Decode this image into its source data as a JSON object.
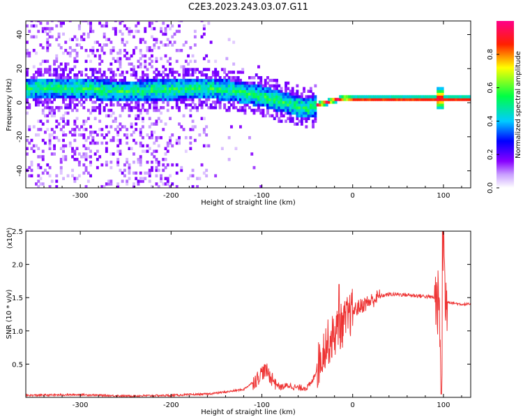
{
  "title": "C2E3.2023.243.03.07.G11",
  "chart_data": [
    {
      "type": "heatmap",
      "xlabel": "Height of straight line (km)",
      "ylabel": "Frequency (Hz)",
      "xlim": [
        -360,
        130
      ],
      "ylim": [
        -50,
        48
      ],
      "xticks": [
        -300,
        -200,
        -100,
        0,
        100
      ],
      "yticks": [
        -40,
        -20,
        0,
        20,
        40
      ],
      "colorbar": {
        "label": "Normalized spectral amplitude",
        "range": [
          0.0,
          1.0
        ],
        "ticks": [
          0.0,
          0.2,
          0.4,
          0.6,
          0.8
        ],
        "colormap": [
          "#ffffff",
          "#8800ff",
          "#0000ff",
          "#00ccff",
          "#00ff00",
          "#ffff00",
          "#ff0000",
          "#ff0080"
        ]
      },
      "ridge": {
        "description_x": [
          -360,
          -300,
          -280,
          -260,
          -200,
          -160,
          -130,
          -100,
          -80,
          -60,
          -50,
          -40,
          -20,
          -10,
          0,
          90,
          95,
          100,
          130
        ],
        "frequency_hz": [
          8,
          8,
          7,
          6,
          7,
          8,
          6,
          3,
          0,
          -3,
          -4,
          -2,
          1,
          2,
          1.5,
          1.5,
          2,
          1.5,
          1.5
        ]
      }
    },
    {
      "type": "line",
      "xlabel": "Height of straight line (km)",
      "ylabel": "SNR (10 * v/v)",
      "y_multiplier": "(x10⁴)",
      "xlim": [
        -360,
        130
      ],
      "ylim": [
        0,
        2.5
      ],
      "xticks": [
        -300,
        -200,
        -100,
        0,
        100
      ],
      "yticks": [
        0.5,
        1.0,
        1.5,
        2.0,
        2.5
      ],
      "ytick_labels": [
        "0.5",
        "1.0",
        "1.5",
        "2.0",
        "2.5"
      ],
      "color": "#ee3333",
      "series": [
        {
          "x": [
            -360,
            -300,
            -250,
            -200,
            -160,
            -140,
            -120,
            -105,
            -100,
            -95,
            -90,
            -80,
            -70,
            -60,
            -50,
            -45,
            -35,
            -30,
            -25,
            -20,
            -15,
            -10,
            -5,
            0,
            10,
            20,
            30,
            40,
            50,
            60,
            70,
            80,
            90,
            95,
            98,
            100,
            102,
            110,
            120,
            130
          ],
          "y": [
            0.03,
            0.04,
            0.02,
            0.03,
            0.05,
            0.08,
            0.12,
            0.28,
            0.38,
            0.4,
            0.3,
            0.15,
            0.18,
            0.14,
            0.15,
            0.22,
            0.6,
            0.8,
            0.85,
            0.95,
            1.05,
            1.1,
            1.2,
            1.3,
            1.38,
            1.45,
            1.52,
            1.55,
            1.55,
            1.54,
            1.53,
            1.52,
            1.5,
            1.4,
            0.1,
            2.5,
            1.45,
            1.42,
            1.4,
            1.4
          ]
        }
      ]
    }
  ]
}
